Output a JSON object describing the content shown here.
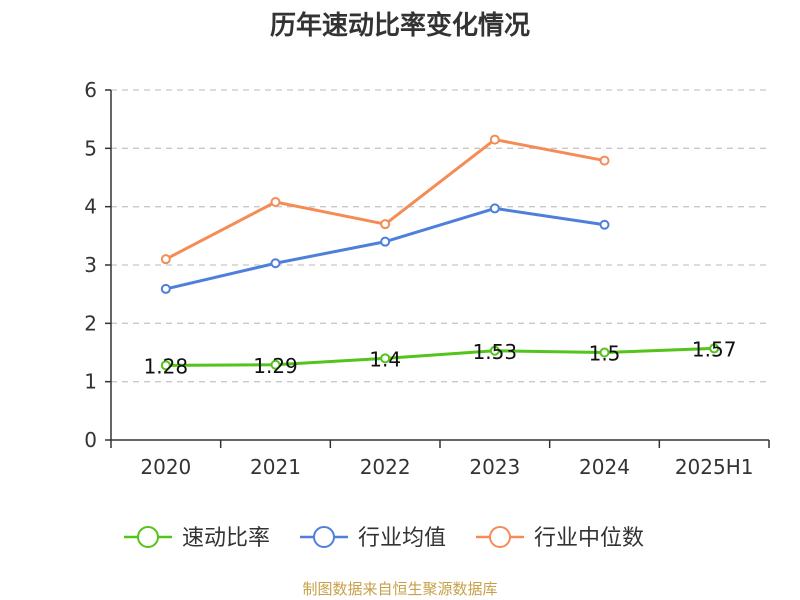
{
  "chart_data": {
    "type": "line",
    "title": "历年速动比率变化情况",
    "categories": [
      "2020",
      "2021",
      "2022",
      "2023",
      "2024",
      "2025H1"
    ],
    "ylim": [
      0,
      6
    ],
    "yticks": [
      0,
      1,
      2,
      3,
      4,
      5,
      6
    ],
    "grid": true,
    "legend_position": "bottom",
    "series": [
      {
        "name": "速动比率",
        "color": "#52c41a",
        "values": [
          1.28,
          1.29,
          1.4,
          1.53,
          1.5,
          1.57
        ],
        "labels": [
          "1.28",
          "1.29",
          "1.4",
          "1.53",
          "1.5",
          "1.57"
        ]
      },
      {
        "name": "行业均值",
        "color": "#4e7fdb",
        "values": [
          2.59,
          3.03,
          3.4,
          3.97,
          3.69,
          null
        ]
      },
      {
        "name": "行业中位数",
        "color": "#f58c56",
        "values": [
          3.1,
          4.08,
          3.7,
          5.15,
          4.79,
          null
        ]
      }
    ],
    "source": "制图数据来自恒生聚源数据库",
    "source_color": "#c8a048"
  }
}
